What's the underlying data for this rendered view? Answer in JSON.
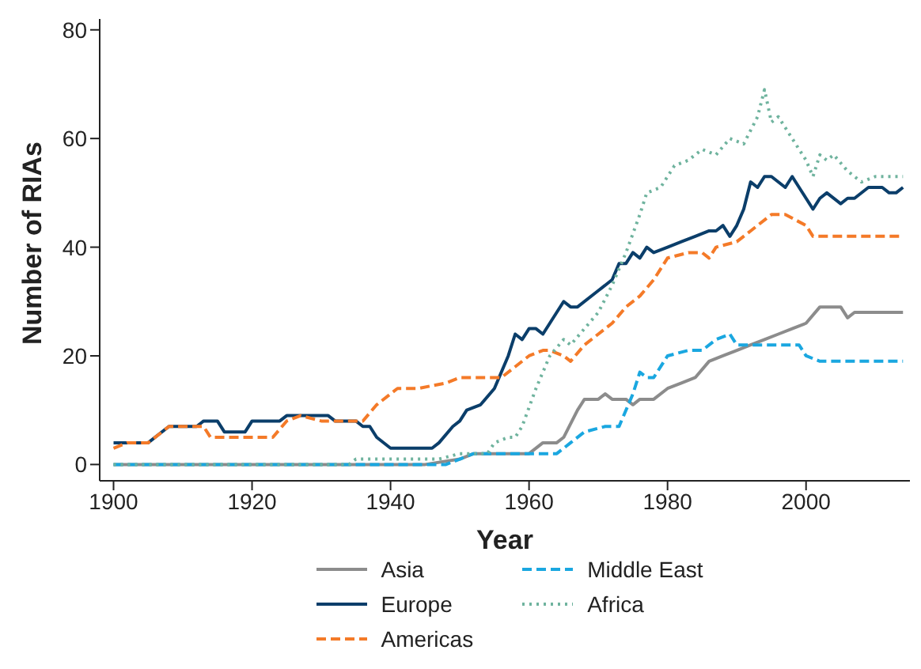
{
  "chart_data": {
    "type": "line",
    "xlabel": "Year",
    "ylabel": "Number of RIAs",
    "xlim": [
      1898,
      2015
    ],
    "ylim": [
      -3,
      82
    ],
    "xticks": [
      1900,
      1920,
      1940,
      1960,
      1980,
      2000
    ],
    "yticks": [
      0,
      20,
      40,
      60,
      80
    ],
    "grid": false,
    "legend": "bottom",
    "marker": "none",
    "series": [
      {
        "name": "Asia",
        "color": "#8c8c8c",
        "line_style": "solid",
        "x": [
          1900,
          1945,
          1950,
          1952,
          1960,
          1962,
          1964,
          1965,
          1967,
          1968,
          1970,
          1971,
          1972,
          1974,
          1975,
          1976,
          1978,
          1980,
          1982,
          1984,
          1986,
          1988,
          1990,
          1992,
          1994,
          1996,
          1998,
          2000,
          2002,
          2005,
          2006,
          2007,
          2014
        ],
        "values": [
          0,
          0,
          1,
          2,
          2,
          4,
          4,
          5,
          10,
          12,
          12,
          13,
          12,
          12,
          11,
          12,
          12,
          14,
          15,
          16,
          19,
          20,
          21,
          22,
          23,
          24,
          25,
          26,
          29,
          29,
          27,
          28,
          28
        ]
      },
      {
        "name": "Europe",
        "color": "#0b3e6a",
        "line_style": "solid",
        "x": [
          1900,
          1905,
          1908,
          1912,
          1913,
          1915,
          1916,
          1919,
          1920,
          1924,
          1925,
          1931,
          1932,
          1935,
          1936,
          1937,
          1938,
          1940,
          1946,
          1947,
          1949,
          1950,
          1951,
          1953,
          1955,
          1957,
          1958,
          1959,
          1960,
          1961,
          1962,
          1963,
          1965,
          1966,
          1967,
          1970,
          1972,
          1973,
          1974,
          1975,
          1976,
          1977,
          1978,
          1980,
          1982,
          1984,
          1986,
          1987,
          1988,
          1989,
          1990,
          1991,
          1992,
          1993,
          1994,
          1995,
          1997,
          1998,
          2000,
          2001,
          2002,
          2003,
          2005,
          2006,
          2007,
          2009,
          2011,
          2012,
          2013,
          2014
        ],
        "values": [
          4,
          4,
          7,
          7,
          8,
          8,
          6,
          6,
          8,
          8,
          9,
          9,
          8,
          8,
          7,
          7,
          5,
          3,
          3,
          4,
          7,
          8,
          10,
          11,
          14,
          20,
          24,
          23,
          25,
          25,
          24,
          26,
          30,
          29,
          29,
          32,
          34,
          37,
          37,
          39,
          38,
          40,
          39,
          40,
          41,
          42,
          43,
          43,
          44,
          42,
          44,
          47,
          52,
          51,
          53,
          53,
          51,
          53,
          49,
          47,
          49,
          50,
          48,
          49,
          49,
          51,
          51,
          50,
          50,
          51
        ]
      },
      {
        "name": "Americas",
        "color": "#f47a28",
        "line_style": "dashed",
        "x": [
          1900,
          1902,
          1905,
          1908,
          1913,
          1914,
          1923,
          1925,
          1927,
          1930,
          1936,
          1938,
          1941,
          1944,
          1948,
          1950,
          1956,
          1958,
          1960,
          1962,
          1963,
          1965,
          1966,
          1968,
          1970,
          1972,
          1974,
          1976,
          1978,
          1980,
          1983,
          1985,
          1986,
          1987,
          1990,
          1992,
          1995,
          1997,
          2000,
          2001,
          2014
        ],
        "values": [
          3,
          4,
          4,
          7,
          7,
          5,
          5,
          8,
          9,
          8,
          8,
          11,
          14,
          14,
          15,
          16,
          16,
          18,
          20,
          21,
          21,
          20,
          19,
          22,
          24,
          26,
          29,
          31,
          34,
          38,
          39,
          39,
          38,
          40,
          41,
          43,
          46,
          46,
          44,
          42,
          42
        ]
      },
      {
        "name": "Middle East",
        "color": "#1aa7e0",
        "line_style": "dashed",
        "x": [
          1900,
          1948,
          1950,
          1952,
          1962,
          1964,
          1966,
          1968,
          1971,
          1973,
          1975,
          1976,
          1977,
          1978,
          1980,
          1983,
          1985,
          1987,
          1989,
          1990,
          1992,
          1994,
          1997,
          1999,
          2000,
          2002,
          2014
        ],
        "values": [
          0,
          0,
          1,
          2,
          2,
          2,
          4,
          6,
          7,
          7,
          13,
          17,
          16,
          16,
          20,
          21,
          21,
          23,
          24,
          22,
          22,
          22,
          22,
          22,
          20,
          19,
          19
        ]
      },
      {
        "name": "Africa",
        "color": "#6fb39e",
        "line_style": "dotted",
        "x": [
          1900,
          1934,
          1935,
          1947,
          1950,
          1954,
          1955,
          1957,
          1958,
          1959,
          1961,
          1963,
          1965,
          1966,
          1968,
          1970,
          1972,
          1974,
          1976,
          1977,
          1979,
          1981,
          1983,
          1985,
          1987,
          1989,
          1991,
          1993,
          1994,
          1995,
          1996,
          1998,
          2000,
          2001,
          2002,
          2003,
          2004,
          2006,
          2008,
          2010,
          2014
        ],
        "values": [
          0,
          0,
          1,
          1,
          2,
          2,
          4,
          5,
          5,
          7,
          14,
          20,
          23,
          22,
          25,
          28,
          33,
          39,
          46,
          50,
          51,
          55,
          56,
          58,
          57,
          60,
          59,
          64,
          69,
          63,
          64,
          60,
          56,
          53,
          57,
          56,
          57,
          54,
          52,
          53,
          53
        ]
      }
    ]
  }
}
